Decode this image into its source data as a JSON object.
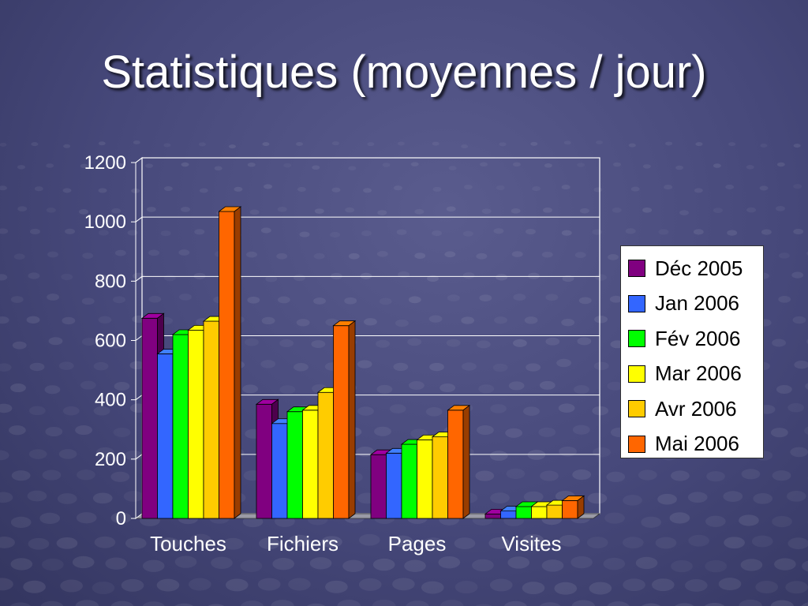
{
  "slide": {
    "title": "Statistiques (moyennes / jour)"
  },
  "chart_data": {
    "type": "bar",
    "categories": [
      "Touches",
      "Fichiers",
      "Pages",
      "Visites"
    ],
    "series": [
      {
        "name": "Déc 2005",
        "color": "#800080",
        "values": [
          675,
          385,
          215,
          15
        ]
      },
      {
        "name": "Jan 2006",
        "color": "#3366ff",
        "values": [
          555,
          320,
          220,
          25
        ]
      },
      {
        "name": "Fév 2006",
        "color": "#00ff00",
        "values": [
          620,
          360,
          250,
          40
        ]
      },
      {
        "name": "Mar 2006",
        "color": "#ffff00",
        "values": [
          635,
          365,
          265,
          40
        ]
      },
      {
        "name": "Avr 2006",
        "color": "#ffcc00",
        "values": [
          665,
          425,
          275,
          45
        ]
      },
      {
        "name": "Mai 2006",
        "color": "#ff6600",
        "values": [
          1035,
          650,
          365,
          60
        ]
      }
    ],
    "y_ticks": [
      "0",
      "200",
      "400",
      "600",
      "800",
      "1000",
      "1200"
    ],
    "ylim": [
      0,
      1200
    ],
    "grid": true,
    "legend_position": "right"
  }
}
